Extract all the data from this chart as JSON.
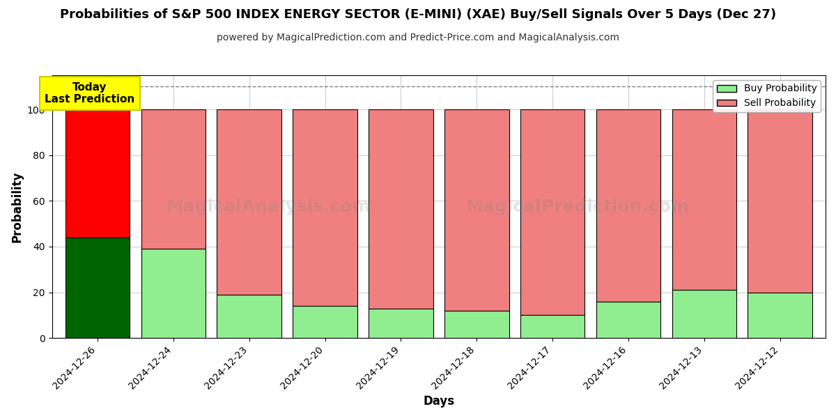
{
  "title": "Probabilities of S&P 500 INDEX ENERGY SECTOR (E-MINI) (XAE) Buy/Sell Signals Over 5 Days (Dec 27)",
  "subtitle": "powered by MagicalPrediction.com and Predict-Price.com and MagicalAnalysis.com",
  "xlabel": "Days",
  "ylabel": "Probability",
  "dates": [
    "2024-12-26",
    "2024-12-24",
    "2024-12-23",
    "2024-12-20",
    "2024-12-19",
    "2024-12-18",
    "2024-12-17",
    "2024-12-16",
    "2024-12-13",
    "2024-12-12"
  ],
  "buy_probs": [
    44,
    39,
    19,
    14,
    13,
    12,
    10,
    16,
    21,
    20
  ],
  "sell_probs": [
    56,
    61,
    81,
    86,
    87,
    88,
    90,
    84,
    79,
    80
  ],
  "buy_color_today": "#006400",
  "sell_color_today": "#FF0000",
  "buy_color_other": "#90EE90",
  "sell_color_other": "#F08080",
  "bar_edge_color": "#000000",
  "today_annotation_text": "Today\nLast Prediction",
  "today_annotation_bg": "#FFFF00",
  "legend_buy_label": "Buy Probability",
  "legend_sell_label": "Sell Probability",
  "ylim": [
    0,
    115
  ],
  "yticks": [
    0,
    20,
    40,
    60,
    80,
    100
  ],
  "dashed_line_y": 110,
  "background_color": "#ffffff",
  "grid_color": "#cccccc",
  "title_fontsize": 13,
  "subtitle_fontsize": 10,
  "xlabel_fontsize": 12,
  "ylabel_fontsize": 12,
  "tick_fontsize": 10,
  "bar_width": 0.85,
  "watermark1": "MagicalAnalysis.com",
  "watermark2": "MagicalPrediction.com"
}
